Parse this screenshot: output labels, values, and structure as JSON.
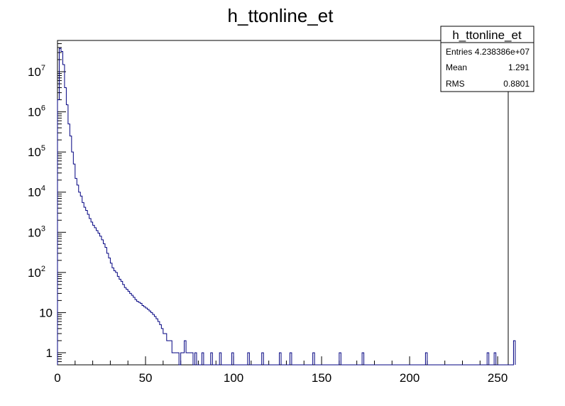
{
  "chart_data": {
    "type": "bar",
    "title": "h_ttonline_et",
    "xlabel": "",
    "ylabel": "",
    "xlim": [
      0,
      256
    ],
    "ylim": [
      0.5,
      60000000
    ],
    "log_y": true,
    "grid": false,
    "line_color": "#000080",
    "x_ticks": [
      "0",
      "50",
      "100",
      "150",
      "200",
      "250"
    ],
    "y_ticks": [
      {
        "base": "1",
        "exp": ""
      },
      {
        "base": "10",
        "exp": ""
      },
      {
        "base": "10",
        "exp": "2"
      },
      {
        "base": "10",
        "exp": "3"
      },
      {
        "base": "10",
        "exp": "4"
      },
      {
        "base": "10",
        "exp": "5"
      },
      {
        "base": "10",
        "exp": "6"
      },
      {
        "base": "10",
        "exp": "7"
      }
    ],
    "y_tick_values": [
      1,
      10,
      100,
      1000,
      10000,
      100000,
      1000000,
      10000000
    ],
    "stats": {
      "title": "h_ttonline_et",
      "rows": [
        {
          "label": "Entries",
          "value": "4.238386e+07"
        },
        {
          "label": "Mean",
          "value": "1.291"
        },
        {
          "label": "RMS",
          "value": "0.8801"
        }
      ]
    },
    "bin_width": 1,
    "values": [
      2000000,
      38000000,
      32000000,
      15000000,
      4000000,
      1500000,
      500000,
      250000,
      100000,
      50000,
      22000,
      15000,
      10000,
      8000,
      5500,
      4200,
      3500,
      2800,
      2200,
      1800,
      1500,
      1300,
      1100,
      950,
      800,
      650,
      520,
      420,
      300,
      230,
      170,
      130,
      110,
      100,
      80,
      68,
      60,
      50,
      42,
      38,
      34,
      30,
      27,
      24,
      21,
      19,
      18,
      17,
      15,
      14,
      13,
      12,
      11,
      10,
      9,
      8,
      7,
      6,
      5,
      4,
      3,
      3,
      2,
      2,
      2,
      1,
      1,
      1,
      1,
      0,
      1,
      1,
      2,
      1,
      1,
      1,
      1,
      0,
      1,
      0,
      0,
      0,
      1,
      0,
      0,
      0,
      0,
      1,
      0,
      0,
      0,
      0,
      1,
      0,
      0,
      0,
      0,
      0,
      0,
      1,
      0,
      0,
      0,
      0,
      0,
      0,
      0,
      0,
      1,
      0,
      0,
      0,
      0,
      0,
      0,
      0,
      1,
      0,
      0,
      0,
      0,
      0,
      0,
      0,
      0,
      0,
      1,
      0,
      0,
      0,
      0,
      0,
      1,
      0,
      0,
      0,
      0,
      0,
      0,
      0,
      0,
      0,
      0,
      0,
      0,
      1,
      0,
      0,
      0,
      0,
      0,
      0,
      0,
      0,
      0,
      0,
      0,
      0,
      0,
      0,
      1,
      0,
      0,
      0,
      0,
      0,
      0,
      0,
      0,
      0,
      0,
      0,
      0,
      1,
      0,
      0,
      0,
      0,
      0,
      0,
      0,
      0,
      0,
      0,
      0,
      0,
      0,
      0,
      0,
      0,
      0,
      0,
      0,
      0,
      0,
      0,
      0,
      0,
      0,
      0,
      0,
      0,
      0,
      0,
      0,
      0,
      0,
      0,
      0,
      1,
      0,
      0,
      0,
      0,
      0,
      0,
      0,
      0,
      0,
      0,
      0,
      0,
      0,
      0,
      0,
      0,
      0,
      0,
      0,
      0,
      0,
      0,
      0,
      0,
      0,
      0,
      0,
      0,
      0,
      0,
      0,
      0,
      0,
      0,
      1,
      0,
      0,
      0,
      1,
      0,
      0,
      0,
      0,
      0,
      0,
      0,
      0,
      0,
      0,
      2
    ],
    "bin_start": 0
  }
}
